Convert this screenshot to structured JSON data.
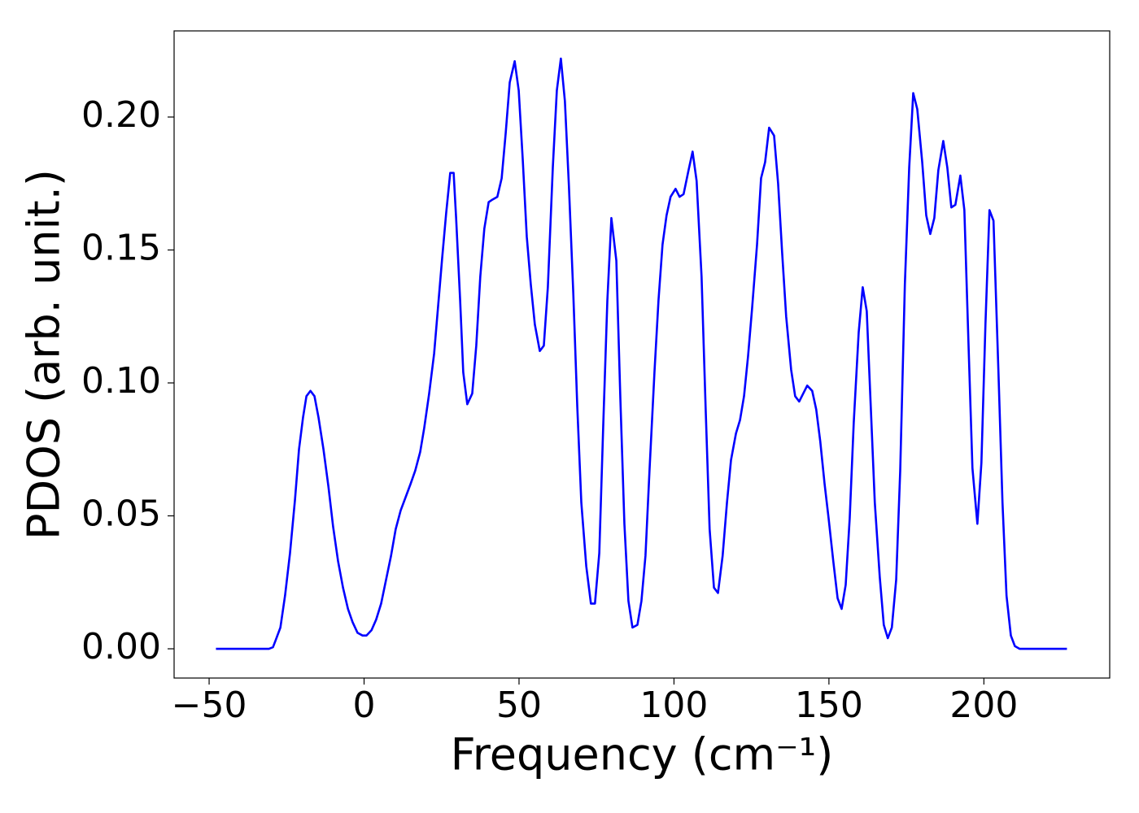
{
  "chart_data": {
    "type": "line",
    "xlabel": "Frequency (cm⁻¹)",
    "ylabel": "PDOS (arb. unit.)",
    "color": "#0000ff",
    "xlim": [
      -61.3,
      240.6
    ],
    "xticks": [
      {
        "value": -50,
        "label": "−50"
      },
      0,
      50,
      100,
      150,
      200
    ],
    "ylim": [
      -0.011,
      0.2324
    ],
    "yticks": [
      {
        "value": 0,
        "label": "0.00"
      },
      {
        "value": 0.05,
        "label": "0.05"
      },
      {
        "value": 0.1,
        "label": "0.10"
      },
      {
        "value": 0.15,
        "label": "0.15"
      },
      {
        "value": 0.2,
        "label": "0.20"
      }
    ],
    "x": [
      -47.8,
      -30.7,
      -29.4,
      -28.6,
      -27.0,
      -25.5,
      -23.9,
      -22.3,
      -21.0,
      -19.7,
      -18.6,
      -17.3,
      -16.0,
      -14.7,
      -13.1,
      -11.5,
      -10.0,
      -8.4,
      -6.8,
      -5.2,
      -3.7,
      -2.1,
      -0.5,
      0.8,
      2.4,
      3.9,
      5.5,
      7.1,
      8.7,
      10.2,
      11.8,
      13.4,
      15.0,
      16.5,
      18.1,
      19.4,
      21.0,
      22.6,
      23.9,
      25.2,
      26.5,
      27.8,
      28.9,
      29.7,
      31.0,
      32.0,
      33.3,
      34.9,
      36.2,
      37.5,
      38.8,
      40.2,
      41.5,
      43.0,
      44.4,
      45.7,
      47.0,
      48.6,
      49.9,
      51.2,
      52.5,
      53.8,
      55.1,
      56.7,
      58.0,
      59.3,
      60.9,
      62.2,
      63.5,
      64.8,
      66.1,
      67.5,
      68.8,
      70.1,
      71.7,
      73.2,
      74.5,
      75.9,
      77.2,
      78.5,
      79.8,
      81.4,
      82.7,
      84.0,
      85.3,
      86.6,
      88.2,
      89.5,
      90.8,
      92.1,
      93.7,
      95.0,
      96.3,
      97.6,
      98.9,
      100.5,
      101.8,
      103.1,
      104.7,
      106.0,
      107.3,
      108.9,
      110.2,
      111.5,
      112.9,
      114.2,
      115.7,
      117.1,
      118.4,
      120.0,
      121.3,
      122.6,
      123.9,
      125.2,
      126.8,
      128.1,
      129.4,
      130.7,
      132.3,
      133.6,
      134.9,
      136.2,
      137.8,
      139.1,
      140.4,
      141.7,
      143.0,
      144.6,
      145.9,
      147.2,
      148.6,
      149.9,
      151.4,
      152.8,
      154.1,
      155.4,
      156.7,
      158.0,
      159.6,
      160.9,
      162.2,
      163.5,
      164.8,
      166.4,
      167.7,
      169.0,
      170.3,
      171.7,
      173.0,
      174.5,
      175.9,
      177.2,
      178.5,
      180.1,
      181.4,
      182.7,
      184.0,
      185.3,
      186.9,
      188.2,
      189.5,
      190.8,
      192.4,
      193.7,
      195.0,
      196.3,
      197.9,
      199.2,
      200.5,
      201.8,
      203.1,
      204.7,
      206.0,
      207.3,
      208.7,
      210.0,
      211.5,
      226.8
    ],
    "values": [
      0,
      0,
      0.0006,
      0.003,
      0.008,
      0.02,
      0.036,
      0.056,
      0.075,
      0.087,
      0.095,
      0.097,
      0.095,
      0.087,
      0.075,
      0.061,
      0.046,
      0.033,
      0.023,
      0.015,
      0.01,
      0.006,
      0.005,
      0.005,
      0.007,
      0.011,
      0.017,
      0.026,
      0.035,
      0.045,
      0.052,
      0.057,
      0.062,
      0.067,
      0.074,
      0.083,
      0.096,
      0.111,
      0.129,
      0.147,
      0.164,
      0.179,
      0.179,
      0.162,
      0.131,
      0.104,
      0.092,
      0.096,
      0.114,
      0.14,
      0.158,
      0.168,
      0.169,
      0.17,
      0.177,
      0.194,
      0.213,
      0.221,
      0.21,
      0.184,
      0.155,
      0.137,
      0.122,
      0.112,
      0.114,
      0.136,
      0.181,
      0.21,
      0.222,
      0.206,
      0.174,
      0.134,
      0.091,
      0.055,
      0.031,
      0.017,
      0.017,
      0.036,
      0.085,
      0.131,
      0.162,
      0.146,
      0.094,
      0.047,
      0.018,
      0.008,
      0.009,
      0.018,
      0.035,
      0.067,
      0.104,
      0.131,
      0.152,
      0.163,
      0.17,
      0.173,
      0.17,
      0.171,
      0.18,
      0.187,
      0.176,
      0.14,
      0.091,
      0.045,
      0.023,
      0.021,
      0.035,
      0.055,
      0.071,
      0.081,
      0.086,
      0.095,
      0.11,
      0.128,
      0.152,
      0.177,
      0.183,
      0.196,
      0.193,
      0.175,
      0.149,
      0.125,
      0.105,
      0.095,
      0.093,
      0.096,
      0.099,
      0.097,
      0.09,
      0.078,
      0.062,
      0.049,
      0.033,
      0.019,
      0.015,
      0.024,
      0.049,
      0.085,
      0.119,
      0.136,
      0.127,
      0.091,
      0.055,
      0.027,
      0.009,
      0.004,
      0.008,
      0.026,
      0.067,
      0.137,
      0.181,
      0.209,
      0.203,
      0.183,
      0.163,
      0.156,
      0.162,
      0.18,
      0.191,
      0.181,
      0.166,
      0.167,
      0.178,
      0.165,
      0.116,
      0.068,
      0.047,
      0.07,
      0.122,
      0.165,
      0.161,
      0.104,
      0.055,
      0.02,
      0.005,
      0.001,
      0,
      0
    ]
  }
}
